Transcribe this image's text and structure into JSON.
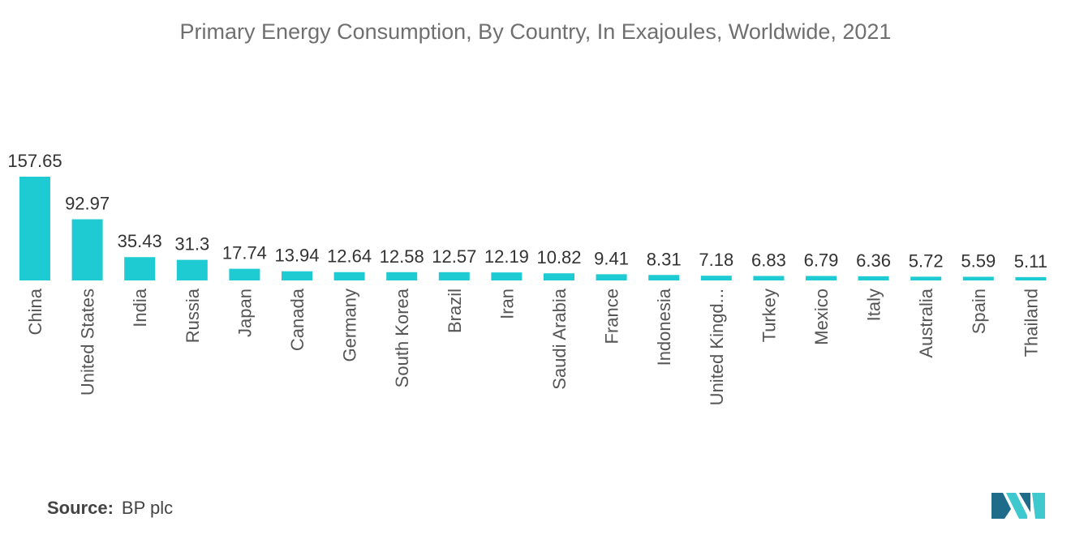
{
  "title": "Primary Energy Consumption, By Country, In Exajoules, Worldwide, 2021",
  "source": {
    "label": "Source:",
    "value": "BP plc"
  },
  "colors": {
    "bar": "#1ecbd3",
    "logo_dark": "#1f6b8a",
    "logo_light": "#3fc9cf"
  },
  "chart_data": {
    "type": "bar",
    "title": "Primary Energy Consumption, By Country, In Exajoules, Worldwide, 2021",
    "xlabel": "",
    "ylabel": "",
    "categories": [
      "China",
      "United States",
      "India",
      "Russia",
      "Japan",
      "Canada",
      "Germany",
      "South Korea",
      "Brazil",
      "Iran",
      "Saudi Arabia",
      "France",
      "Indonesia",
      "United Kingd...",
      "Turkey",
      "Mexico",
      "Italy",
      "Australia",
      "Spain",
      "Thailand"
    ],
    "values": [
      157.65,
      92.97,
      35.43,
      31.3,
      17.74,
      13.94,
      12.64,
      12.58,
      12.57,
      12.19,
      10.82,
      9.41,
      8.31,
      7.18,
      6.83,
      6.79,
      6.36,
      5.72,
      5.59,
      5.11
    ],
    "value_labels": [
      "157.65",
      "92.97",
      "35.43",
      "31.3",
      "17.74",
      "13.94",
      "12.64",
      "12.58",
      "12.57",
      "12.19",
      "10.82",
      "9.41",
      "8.31",
      "7.18",
      "6.83",
      "6.79",
      "6.36",
      "5.72",
      "5.59",
      "5.11"
    ],
    "ylim": [
      0,
      157.65
    ],
    "grid": false,
    "legend": "none"
  }
}
